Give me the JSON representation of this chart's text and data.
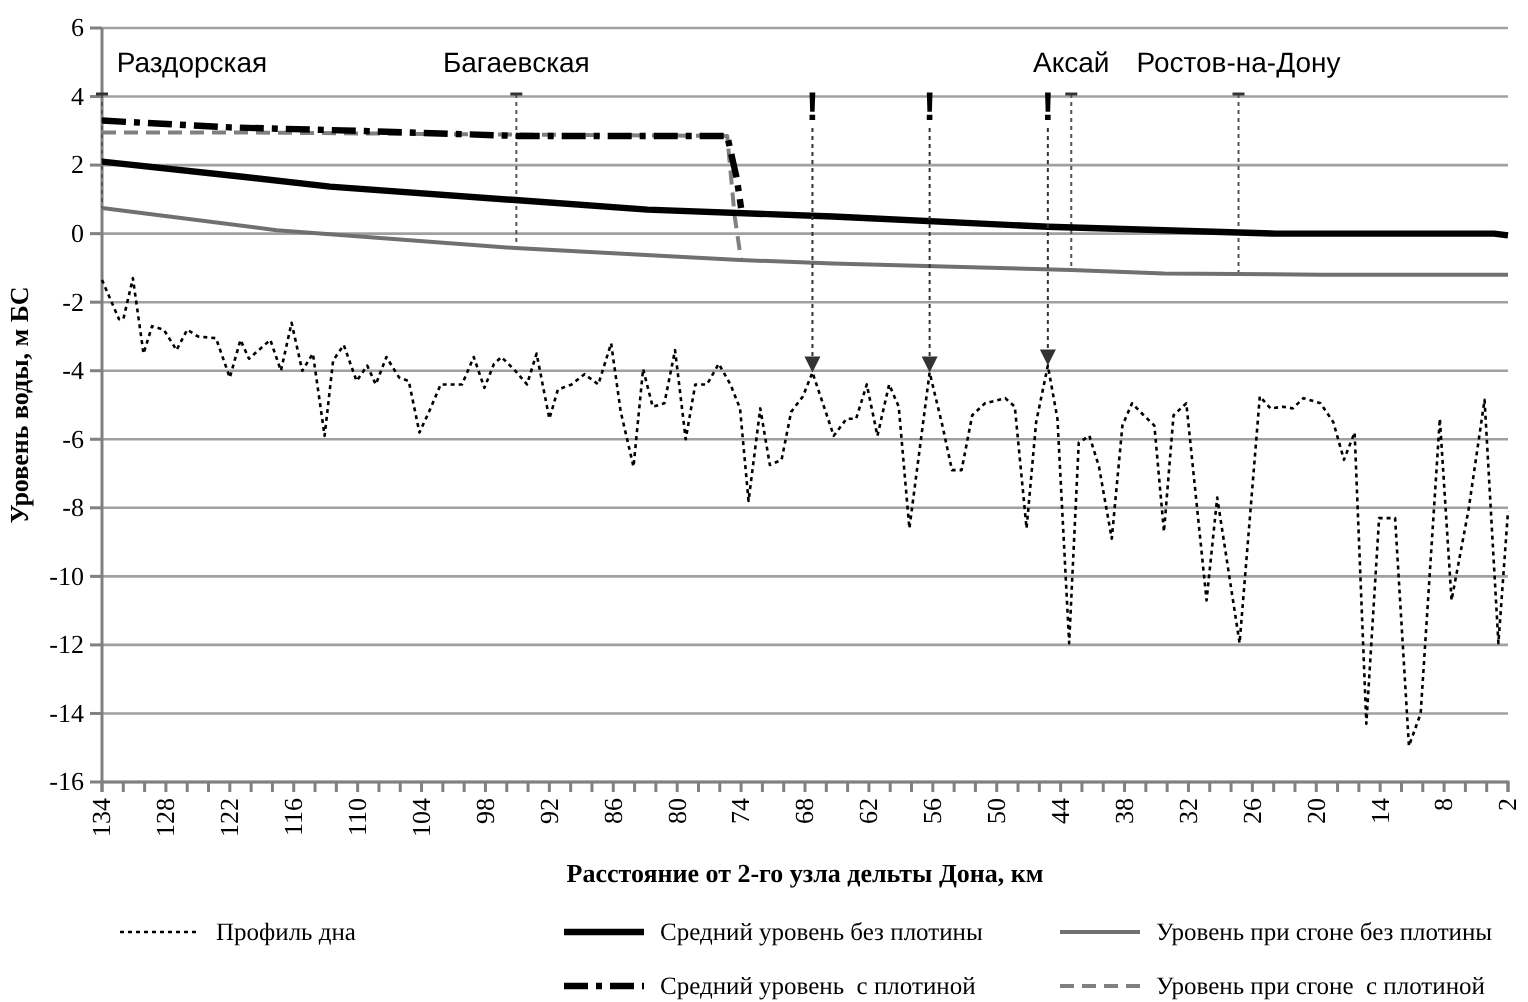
{
  "chart_data": {
    "type": "line",
    "xlabel": "Расстояние от 2-го узла дельты Дона, км",
    "ylabel": "Уровень воды, м БС",
    "xlim": [
      134,
      2
    ],
    "ylim": [
      -16,
      6
    ],
    "xticks": [
      134,
      {
        "value": 132,
        "label": null
      },
      {
        "value": 130,
        "label": null
      },
      128,
      {
        "value": 126,
        "label": null
      },
      {
        "value": 124,
        "label": null
      },
      122,
      {
        "value": 120,
        "label": null
      },
      {
        "value": 118,
        "label": null
      },
      116,
      {
        "value": 114,
        "label": null
      },
      {
        "value": 112,
        "label": null
      },
      110,
      {
        "value": 108,
        "label": null
      },
      {
        "value": 106,
        "label": null
      },
      104,
      {
        "value": 102,
        "label": null
      },
      {
        "value": 100,
        "label": null
      },
      98,
      {
        "value": 96,
        "label": null
      },
      {
        "value": 94,
        "label": null
      },
      92,
      {
        "value": 90,
        "label": null
      },
      {
        "value": 88,
        "label": null
      },
      86,
      {
        "value": 84,
        "label": null
      },
      {
        "value": 82,
        "label": null
      },
      80,
      {
        "value": 78,
        "label": null
      },
      {
        "value": 76,
        "label": null
      },
      74,
      {
        "value": 72,
        "label": null
      },
      {
        "value": 70,
        "label": null
      },
      68,
      {
        "value": 66,
        "label": null
      },
      {
        "value": 64,
        "label": null
      },
      62,
      {
        "value": 60,
        "label": null
      },
      {
        "value": 58,
        "label": null
      },
      56,
      {
        "value": 54,
        "label": null
      },
      {
        "value": 52,
        "label": null
      },
      50,
      {
        "value": 48,
        "label": null
      },
      {
        "value": 46,
        "label": null
      },
      44,
      {
        "value": 42,
        "label": null
      },
      {
        "value": 40,
        "label": null
      },
      38,
      {
        "value": 36,
        "label": null
      },
      {
        "value": 34,
        "label": null
      },
      32,
      {
        "value": 30,
        "label": null
      },
      {
        "value": 28,
        "label": null
      },
      26,
      {
        "value": 24,
        "label": null
      },
      {
        "value": 22,
        "label": null
      },
      20,
      {
        "value": 18,
        "label": null
      },
      {
        "value": 16,
        "label": null
      },
      14,
      {
        "value": 12,
        "label": null
      },
      {
        "value": 10,
        "label": null
      },
      8,
      {
        "value": 6,
        "label": null
      },
      {
        "value": 4,
        "label": null
      },
      2
    ],
    "yticks": [
      -16,
      -14,
      -12,
      -10,
      -8,
      -6,
      -4,
      -2,
      0,
      2,
      4,
      6
    ],
    "grid": "y",
    "legend": "bottom",
    "marker": "none",
    "series": [
      {
        "name": "Профиль дна",
        "color": "#000000",
        "line_style": "dotted",
        "x": [
          134,
          132.4,
          132,
          131.1,
          130.1,
          129.3,
          128.2,
          127,
          126,
          125,
          123.3,
          122,
          121,
          120.2,
          118.2,
          117.2,
          116.2,
          115.2,
          114.2,
          113.1,
          112.3,
          111.3,
          110.1,
          109.1,
          108.3,
          107.3,
          106.1,
          105.2,
          104.2,
          103.3,
          102.2,
          101.1,
          100.2,
          99.1,
          98.1,
          97.2,
          96.5,
          95.2,
          94.1,
          93.2,
          92,
          91.2,
          89.9,
          88.7,
          87.4,
          86.2,
          85.3,
          84.1,
          83.2,
          82.3,
          81.2,
          80.2,
          79.2,
          78.3,
          77.2,
          76.1,
          75,
          74.1,
          73.3,
          72.2,
          71.3,
          70.2,
          69.3,
          68.2,
          67.3,
          65.3,
          64.1,
          63.2,
          62.2,
          61.2,
          60.1,
          59.2,
          58.2,
          56.3,
          55.1,
          54.2,
          53.3,
          52.3,
          51.1,
          49.2,
          48.3,
          47.2,
          46.3,
          45.2,
          44.3,
          43.2,
          42.3,
          41.3,
          40.4,
          39.2,
          38.2,
          37.3,
          36.2,
          35.2,
          34.3,
          33.4,
          32.2,
          30.3,
          29.3,
          27.2,
          25.3,
          24.3,
          23.1,
          22.2,
          21.2,
          19.6,
          18.4,
          17.4,
          16.4,
          15.3,
          14.1,
          12.6,
          11.3,
          10.2,
          8.4,
          7.3,
          5.7,
          4.2,
          2.9,
          2
        ],
        "values": [
          -1.35,
          -2.5,
          -2.5,
          -1.3,
          -3.5,
          -2.7,
          -2.8,
          -3.4,
          -2.8,
          -3,
          -3.05,
          -4.2,
          -3.1,
          -3.65,
          -3.1,
          -4,
          -2.6,
          -4,
          -3.5,
          -5.9,
          -3.7,
          -3.25,
          -4.3,
          -3.85,
          -4.4,
          -3.6,
          -4.2,
          -4.3,
          -5.8,
          -5.2,
          -4.4,
          -4.4,
          -4.4,
          -3.6,
          -4.5,
          -3.8,
          -3.6,
          -4,
          -4.4,
          -3.5,
          -5.4,
          -4.55,
          -4.4,
          -4.1,
          -4.4,
          -3.2,
          -5.2,
          -6.8,
          -3.95,
          -5.05,
          -4.95,
          -3.4,
          -6,
          -4.4,
          -4.4,
          -3.8,
          -4.4,
          -5.1,
          -7.8,
          -5.1,
          -6.75,
          -6.6,
          -5.2,
          -4.75,
          -4.05,
          -5.9,
          -5.4,
          -5.4,
          -4.4,
          -5.9,
          -4.4,
          -5.05,
          -8.6,
          -4.05,
          -5.6,
          -6.9,
          -6.9,
          -5.3,
          -4.95,
          -4.8,
          -5.05,
          -8.6,
          -5.5,
          -3.85,
          -5.4,
          -11.95,
          -6.1,
          -5.9,
          -6.8,
          -8.9,
          -5.6,
          -4.95,
          -5.3,
          -5.6,
          -8.7,
          -5.3,
          -4.95,
          -10.7,
          -7.7,
          -11.95,
          -4.75,
          -5.1,
          -5.05,
          -5.1,
          -4.8,
          -4.95,
          -5.5,
          -6.6,
          -5.8,
          -14.3,
          -8.3,
          -8.3,
          -14.95,
          -14,
          -5.4,
          -10.7,
          -8.05,
          -4.85,
          -11.95,
          -8.1
        ]
      },
      {
        "name": "Средний уровень без плотины",
        "color": "#000000",
        "line_style": "solid",
        "x": [
          134,
          120.8,
          112.6,
          95.2,
          82.8,
          65.4,
          45.2,
          23.8,
          3.3,
          2
        ],
        "values": [
          2.1,
          1.66,
          1.37,
          0.98,
          0.7,
          0.5,
          0.2,
          0,
          0,
          -0.05
        ]
      },
      {
        "name": "Уровень при сгоне без плотины",
        "color": "#707070",
        "line_style": "solid",
        "x": [
          134,
          117.6,
          95.2,
          74.1,
          65.4,
          43,
          34.3,
          19.4,
          2
        ],
        "values": [
          0.75,
          0.1,
          -0.42,
          -0.77,
          -0.87,
          -1.06,
          -1.16,
          -1.2,
          -1.2
        ]
      },
      {
        "name": "Средний уровень  с плотиной",
        "color": "#000000",
        "line_style": "dashdot",
        "x": [
          134,
          122,
          110,
          95,
          75.3,
          74.4,
          74
        ],
        "values": [
          3.3,
          3.1,
          3,
          2.85,
          2.85,
          1.6,
          0.75
        ]
      },
      {
        "name": "Уровень при сгоне  с плотиной",
        "color": "#808080",
        "line_style": "dashed",
        "x": [
          134,
          120,
          100,
          75.3,
          74.6,
          74
        ],
        "values": [
          2.95,
          2.95,
          2.9,
          2.85,
          0.5,
          -0.77
        ]
      }
    ],
    "ref_lines": [
      {
        "axis": "x",
        "value": 134,
        "label": "Раздорская"
      },
      {
        "axis": "x",
        "value": 95.1,
        "label": "Багаевская"
      },
      {
        "axis": "x",
        "value": 43,
        "label": "Аксай"
      },
      {
        "axis": "x",
        "value": 27.3,
        "label": "Ростов-на-Дону"
      }
    ],
    "annotations": [
      {
        "text": "!",
        "x": 67.3,
        "y": -4.05
      },
      {
        "text": "!",
        "x": 56.3,
        "y": -4.05
      },
      {
        "text": "!",
        "x": 45.2,
        "y": -3.85
      }
    ]
  }
}
